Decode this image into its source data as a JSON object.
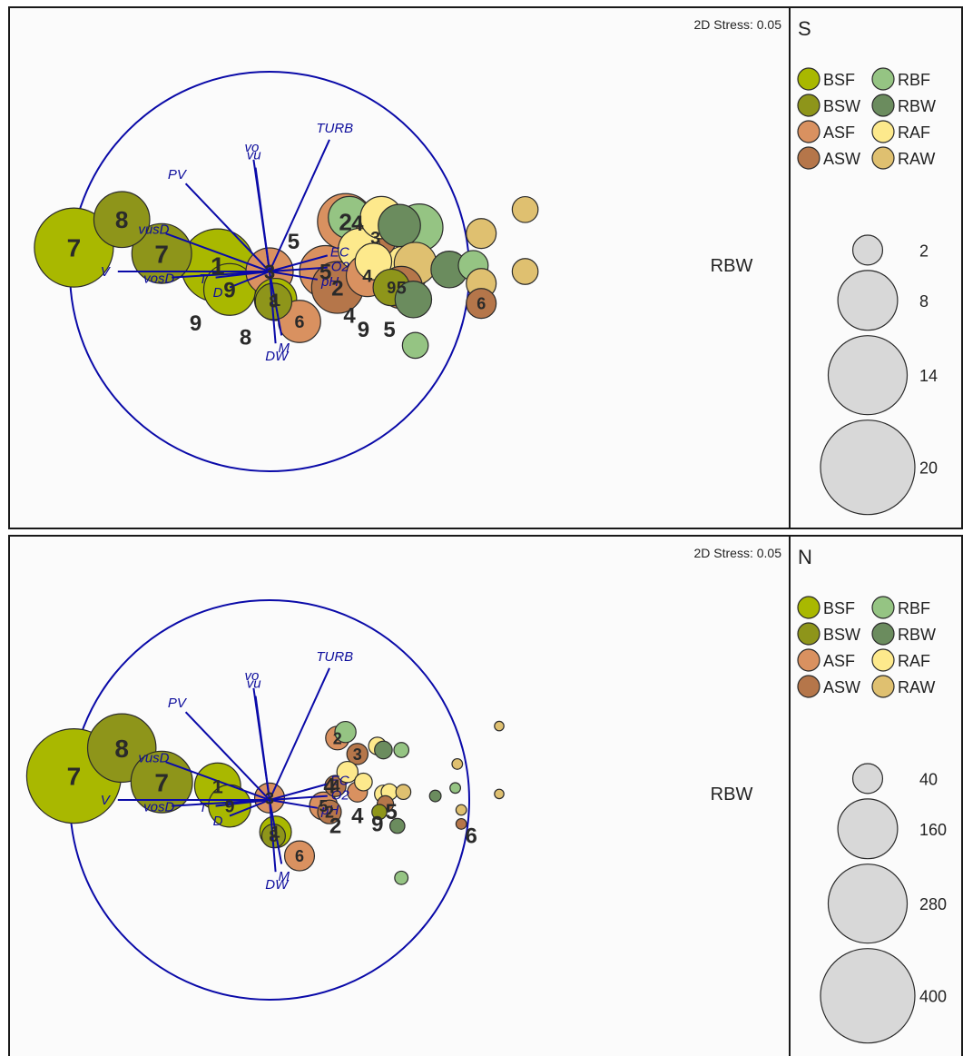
{
  "colors": {
    "BSF": "#a9b800",
    "BSW": "#8e951a",
    "ASF": "#d99160",
    "ASW": "#b5764a",
    "RBF": "#95c483",
    "RBW": "#6b8c5e",
    "RAF": "#fde98c",
    "RAW": "#dfc070",
    "vector": "#0a0aa8",
    "circle": "#0a0aa8",
    "size_key": "#d8d8d8"
  },
  "panels": [
    {
      "id": "S",
      "letter": "S",
      "stress": "2D Stress: 0.05",
      "center_label": "RBW",
      "legend": [
        {
          "code": "BSF",
          "label": "BSF"
        },
        {
          "code": "RBF",
          "label": "RBF"
        },
        {
          "code": "BSW",
          "label": "BSW"
        },
        {
          "code": "RBW",
          "label": "RBW"
        },
        {
          "code": "ASF",
          "label": "ASF"
        },
        {
          "code": "RAF",
          "label": "RAF"
        },
        {
          "code": "ASW",
          "label": "ASW"
        },
        {
          "code": "RAW",
          "label": "RAW"
        }
      ],
      "size_key": [
        {
          "label": "2",
          "value": 2
        },
        {
          "label": "8",
          "value": 8
        },
        {
          "label": "14",
          "value": 14
        },
        {
          "label": "20",
          "value": 20
        }
      ],
      "chart_data": {
        "type": "scatter",
        "subtype": "nMDS bubble plot with vector overlay",
        "stress": 0.05,
        "vectors": [
          {
            "name": "TURB",
            "x": 0.3,
            "y": 0.66
          },
          {
            "name": "vo",
            "x": -0.08,
            "y": 0.56
          },
          {
            "name": "vu",
            "x": -0.07,
            "y": 0.52
          },
          {
            "name": "PV",
            "x": -0.42,
            "y": 0.44
          },
          {
            "name": "vusD",
            "x": -0.52,
            "y": 0.19
          },
          {
            "name": "vosD",
            "x": -0.49,
            "y": -0.03
          },
          {
            "name": "V",
            "x": -0.76,
            "y": 0.0
          },
          {
            "name": "T",
            "x": -0.27,
            "y": -0.03
          },
          {
            "name": "D",
            "x": -0.2,
            "y": -0.08
          },
          {
            "name": "DW",
            "x": 0.03,
            "y": -0.36
          },
          {
            "name": "M",
            "x": 0.06,
            "y": -0.32
          },
          {
            "name": "EC",
            "x": 0.29,
            "y": 0.08
          },
          {
            "name": "O2",
            "x": 0.29,
            "y": 0.02
          },
          {
            "name": "pH",
            "x": 0.24,
            "y": -0.04
          }
        ],
        "points": [
          {
            "group": "BSF",
            "label": "7",
            "x": -0.98,
            "y": 0.12,
            "v": 14
          },
          {
            "group": "BSW",
            "label": "8",
            "x": -0.74,
            "y": 0.26,
            "v": 7
          },
          {
            "group": "BSW",
            "label": "7",
            "x": -0.54,
            "y": 0.09,
            "v": 8
          },
          {
            "group": "BSF",
            "label": "1",
            "x": -0.26,
            "y": 0.03,
            "v": 12
          },
          {
            "group": "BSF",
            "label": "9",
            "x": -0.2,
            "y": -0.09,
            "v": 6
          },
          {
            "group": "ASF",
            "label": "3",
            "x": 0.0,
            "y": 0.0,
            "v": 5
          },
          {
            "group": "BSF",
            "label": "1",
            "x": 0.03,
            "y": -0.14,
            "v": 4
          },
          {
            "group": "BSW",
            "label": "8",
            "x": 0.02,
            "y": -0.15,
            "v": 3
          },
          {
            "group": "ASF",
            "label": "6",
            "x": 0.15,
            "y": -0.25,
            "v": 4
          },
          {
            "group": "ASF",
            "label": "5",
            "x": 0.28,
            "y": 0.0,
            "v": 6
          },
          {
            "group": "ASW",
            "label": "2",
            "x": 0.34,
            "y": -0.08,
            "v": 6
          },
          {
            "group": "RBF",
            "label": "",
            "x": 0.4,
            "y": 0.27,
            "v": 4
          },
          {
            "group": "ASF",
            "label": "2",
            "x": 0.38,
            "y": 0.25,
            "v": 7
          },
          {
            "group": "ASW",
            "label": "3",
            "x": 0.53,
            "y": 0.17,
            "v": 4
          },
          {
            "group": "RAF",
            "label": "",
            "x": 0.45,
            "y": 0.11,
            "v": 4
          },
          {
            "group": "RAF",
            "label": "",
            "x": 0.56,
            "y": 0.27,
            "v": 4
          },
          {
            "group": "RBW",
            "label": "",
            "x": 0.65,
            "y": 0.23,
            "v": 4
          },
          {
            "group": "RBF",
            "label": "",
            "x": 0.75,
            "y": 0.22,
            "v": 5
          },
          {
            "group": "ASF",
            "label": "4",
            "x": 0.49,
            "y": -0.02,
            "v": 4
          },
          {
            "group": "RAF",
            "label": "",
            "x": 0.52,
            "y": 0.05,
            "v": 3
          },
          {
            "group": "RAW",
            "label": "",
            "x": 0.73,
            "y": 0.04,
            "v": 4
          },
          {
            "group": "BSW",
            "label": "9",
            "x": 0.61,
            "y": -0.08,
            "v": 3
          },
          {
            "group": "ASW",
            "label": "5",
            "x": 0.66,
            "y": -0.08,
            "v": 4
          },
          {
            "group": "RAF",
            "label": "",
            "x": 0.68,
            "y": 0.01,
            "v": 5
          },
          {
            "group": "RBW",
            "label": "",
            "x": 0.72,
            "y": -0.14,
            "v": 3
          },
          {
            "group": "RBW",
            "label": "",
            "x": 0.9,
            "y": 0.01,
            "v": 3
          },
          {
            "group": "RBF",
            "label": "",
            "x": 1.02,
            "y": 0.03,
            "v": 2
          },
          {
            "group": "RAW",
            "label": "",
            "x": 1.06,
            "y": 0.19,
            "v": 2
          },
          {
            "group": "RAW",
            "label": "",
            "x": 1.06,
            "y": -0.06,
            "v": 2
          },
          {
            "group": "ASW",
            "label": "6",
            "x": 1.06,
            "y": -0.16,
            "v": 2
          },
          {
            "group": "RBF",
            "label": "",
            "x": 0.73,
            "y": -0.37,
            "v": 1.5
          },
          {
            "group": "RAW",
            "label": "",
            "x": 1.28,
            "y": 0.31,
            "v": 1.5
          },
          {
            "group": "RAW",
            "label": "",
            "x": 1.28,
            "y": 0.0,
            "v": 1.5
          }
        ],
        "extra_labels": [
          {
            "text": "9",
            "x": -0.37,
            "y": -0.26
          },
          {
            "text": "8",
            "x": -0.12,
            "y": -0.33
          },
          {
            "text": "4",
            "x": 0.44,
            "y": 0.24
          },
          {
            "text": "5",
            "x": 0.12,
            "y": 0.15
          },
          {
            "text": "4",
            "x": 0.4,
            "y": -0.22
          },
          {
            "text": "9",
            "x": 0.47,
            "y": -0.29
          },
          {
            "text": "5",
            "x": 0.6,
            "y": -0.29
          }
        ]
      }
    },
    {
      "id": "N",
      "letter": "N",
      "stress": "2D Stress: 0.05",
      "center_label": "RBW",
      "legend": [
        {
          "code": "BSF",
          "label": "BSF"
        },
        {
          "code": "RBF",
          "label": "RBF"
        },
        {
          "code": "BSW",
          "label": "BSW"
        },
        {
          "code": "RBW",
          "label": "RBW"
        },
        {
          "code": "ASF",
          "label": "ASF"
        },
        {
          "code": "RAF",
          "label": "RAF"
        },
        {
          "code": "ASW",
          "label": "ASW"
        },
        {
          "code": "RAW",
          "label": "RAW"
        }
      ],
      "size_key": [
        {
          "label": "40",
          "value": 40
        },
        {
          "label": "160",
          "value": 160
        },
        {
          "label": "280",
          "value": 280
        },
        {
          "label": "400",
          "value": 400
        }
      ],
      "chart_data": {
        "type": "scatter",
        "subtype": "nMDS bubble plot with vector overlay",
        "stress": 0.05,
        "vectors": [
          {
            "name": "TURB",
            "x": 0.3,
            "y": 0.66
          },
          {
            "name": "vo",
            "x": -0.08,
            "y": 0.56
          },
          {
            "name": "vu",
            "x": -0.07,
            "y": 0.52
          },
          {
            "name": "PV",
            "x": -0.42,
            "y": 0.44
          },
          {
            "name": "vusD",
            "x": -0.52,
            "y": 0.19
          },
          {
            "name": "vosD",
            "x": -0.49,
            "y": -0.03
          },
          {
            "name": "V",
            "x": -0.76,
            "y": 0.0
          },
          {
            "name": "T",
            "x": -0.27,
            "y": -0.03
          },
          {
            "name": "D",
            "x": -0.2,
            "y": -0.08
          },
          {
            "name": "DW",
            "x": 0.03,
            "y": -0.36
          },
          {
            "name": "M",
            "x": 0.06,
            "y": -0.32
          },
          {
            "name": "EC",
            "x": 0.29,
            "y": 0.08
          },
          {
            "name": "O2",
            "x": 0.29,
            "y": 0.02
          },
          {
            "name": "pH",
            "x": 0.24,
            "y": -0.04
          }
        ],
        "points": [
          {
            "group": "BSF",
            "label": "7",
            "x": -0.98,
            "y": 0.12,
            "v": 400
          },
          {
            "group": "BSW",
            "label": "8",
            "x": -0.74,
            "y": 0.26,
            "v": 210
          },
          {
            "group": "BSW",
            "label": "7",
            "x": -0.54,
            "y": 0.09,
            "v": 170
          },
          {
            "group": "BSF",
            "label": "1",
            "x": -0.26,
            "y": 0.07,
            "v": 95
          },
          {
            "group": "BSF",
            "label": "9",
            "x": -0.2,
            "y": -0.03,
            "v": 80
          },
          {
            "group": "ASF",
            "label": "3",
            "x": 0.0,
            "y": 0.01,
            "v": 40
          },
          {
            "group": "BSF",
            "label": "1",
            "x": 0.03,
            "y": -0.16,
            "v": 45
          },
          {
            "group": "BSW",
            "label": "8",
            "x": 0.02,
            "y": -0.18,
            "v": 25
          },
          {
            "group": "ASF",
            "label": "6",
            "x": 0.15,
            "y": -0.28,
            "v": 40
          },
          {
            "group": "ASF",
            "label": "5",
            "x": 0.27,
            "y": -0.03,
            "v": 35
          },
          {
            "group": "ASW",
            "label": "2",
            "x": 0.3,
            "y": -0.06,
            "v": 25
          },
          {
            "group": "ASF",
            "label": "2",
            "x": 0.34,
            "y": 0.31,
            "v": 25
          },
          {
            "group": "RBF",
            "label": "",
            "x": 0.38,
            "y": 0.34,
            "v": 20
          },
          {
            "group": "ASW",
            "label": "3",
            "x": 0.44,
            "y": 0.23,
            "v": 20
          },
          {
            "group": "ASW",
            "label": "4",
            "x": 0.33,
            "y": 0.07,
            "v": 20
          },
          {
            "group": "RAF",
            "label": "",
            "x": 0.39,
            "y": 0.14,
            "v": 20
          },
          {
            "group": "RAF",
            "label": "",
            "x": 0.47,
            "y": 0.09,
            "v": 14
          },
          {
            "group": "ASF",
            "label": "",
            "x": 0.44,
            "y": 0.04,
            "v": 18
          },
          {
            "group": "RAF",
            "label": "",
            "x": 0.54,
            "y": 0.27,
            "v": 14
          },
          {
            "group": "RBW",
            "label": "",
            "x": 0.57,
            "y": 0.25,
            "v": 14
          },
          {
            "group": "RBF",
            "label": "",
            "x": 0.66,
            "y": 0.25,
            "v": 10
          },
          {
            "group": "RAF",
            "label": "",
            "x": 0.57,
            "y": 0.03,
            "v": 14
          },
          {
            "group": "RAF",
            "label": "",
            "x": 0.6,
            "y": 0.04,
            "v": 12
          },
          {
            "group": "RAW",
            "label": "",
            "x": 0.67,
            "y": 0.04,
            "v": 10
          },
          {
            "group": "ASW",
            "label": "",
            "x": 0.58,
            "y": -0.02,
            "v": 12
          },
          {
            "group": "BSW",
            "label": "",
            "x": 0.55,
            "y": -0.06,
            "v": 10
          },
          {
            "group": "RBW",
            "label": "",
            "x": 0.64,
            "y": -0.13,
            "v": 10
          },
          {
            "group": "RBW",
            "label": "",
            "x": 0.83,
            "y": 0.02,
            "v": 6
          },
          {
            "group": "RBF",
            "label": "",
            "x": 0.93,
            "y": 0.06,
            "v": 5
          },
          {
            "group": "RAW",
            "label": "",
            "x": 0.94,
            "y": 0.18,
            "v": 5
          },
          {
            "group": "RAW",
            "label": "",
            "x": 0.96,
            "y": -0.05,
            "v": 5
          },
          {
            "group": "ASW",
            "label": "",
            "x": 0.96,
            "y": -0.12,
            "v": 5
          },
          {
            "group": "RBF",
            "label": "",
            "x": 0.66,
            "y": -0.39,
            "v": 8
          },
          {
            "group": "RAW",
            "label": "",
            "x": 1.15,
            "y": 0.37,
            "v": 4
          },
          {
            "group": "RAW",
            "label": "",
            "x": 1.15,
            "y": 0.03,
            "v": 4
          }
        ],
        "extra_labels": [
          {
            "text": "4",
            "x": 0.3,
            "y": 0.07
          },
          {
            "text": "2",
            "x": 0.33,
            "y": -0.13
          },
          {
            "text": "4",
            "x": 0.44,
            "y": -0.08
          },
          {
            "text": "9",
            "x": 0.54,
            "y": -0.12
          },
          {
            "text": "5",
            "x": 0.61,
            "y": -0.06
          },
          {
            "text": "6",
            "x": 1.01,
            "y": -0.18
          }
        ]
      }
    }
  ]
}
